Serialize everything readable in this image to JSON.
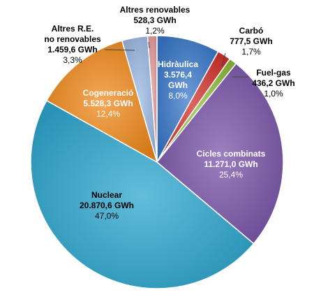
{
  "chart_data": {
    "type": "pie",
    "title": "",
    "slices": [
      {
        "name": "Hidràulica",
        "value_label": "3.576,4 GWh",
        "value": 3576.4,
        "pct_label": "8,0%",
        "pct": 8.0,
        "color": "#3a78c9"
      },
      {
        "name": "Carbó",
        "value_label": "777,5 GWh",
        "value": 777.5,
        "pct_label": "1,7%",
        "pct": 1.7,
        "color": "#d2322d"
      },
      {
        "name": "Fuel-gas",
        "value_label": "436,2 GWh",
        "value": 436.2,
        "pct_label": "1,0%",
        "pct": 1.0,
        "color": "#8fbc3a"
      },
      {
        "name": "Cicles combinats",
        "value_label": "11.271,0 GWh",
        "value": 11271.0,
        "pct_label": "25,4%",
        "pct": 25.4,
        "color": "#7a54a8"
      },
      {
        "name": "Nuclear",
        "value_label": "20.870,6 GWh",
        "value": 20870.6,
        "pct_label": "47,0%",
        "pct": 47.0,
        "color": "#2fa7cf"
      },
      {
        "name": "Cogeneració",
        "value_label": "5.528,3 GWh",
        "value": 5528.3,
        "pct_label": "12,4%",
        "pct": 12.4,
        "color": "#f08a1c"
      },
      {
        "name": "Altres R.E. no renovables",
        "name_lines": [
          "Altres R.E.",
          "no renovables"
        ],
        "value_label": "1.459,6 GWh",
        "value": 1459.6,
        "pct_label": "3,3%",
        "pct": 3.3,
        "color": "#9bb8e2"
      },
      {
        "name": "Altres renovables",
        "value_label": "528,3 GWh",
        "value": 528.3,
        "pct_label": "1,2%",
        "pct": 1.2,
        "color": "#e39a9a"
      }
    ]
  }
}
